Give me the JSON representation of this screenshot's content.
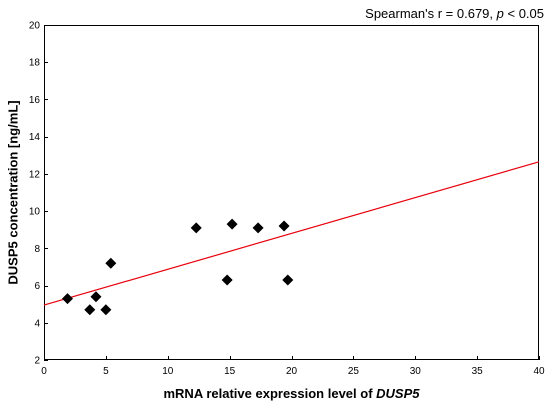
{
  "chart_data": {
    "type": "scatter",
    "annotation": {
      "prefix": "Spearman's r = 0.679, ",
      "p_symbol": "p",
      "suffix": " < 0.05"
    },
    "xlabel": {
      "prefix": "mRNA relative expression level of ",
      "gene": "DUSP5"
    },
    "ylabel": "DUSP5 concentration [ng/mL]",
    "xlim": [
      0,
      40
    ],
    "ylim": [
      2,
      20
    ],
    "x_ticks": [
      0,
      5,
      10,
      15,
      20,
      25,
      30,
      35,
      40
    ],
    "y_ticks": [
      2,
      4,
      6,
      8,
      10,
      12,
      14,
      16,
      18,
      20
    ],
    "grid": false,
    "marker": "diamond",
    "marker_color": "#000000",
    "points": [
      {
        "x": 1.9,
        "y": 5.3
      },
      {
        "x": 3.7,
        "y": 4.7
      },
      {
        "x": 4.2,
        "y": 5.4
      },
      {
        "x": 5.0,
        "y": 4.7
      },
      {
        "x": 5.4,
        "y": 7.2
      },
      {
        "x": 12.3,
        "y": 9.1
      },
      {
        "x": 14.8,
        "y": 6.3
      },
      {
        "x": 15.2,
        "y": 9.3
      },
      {
        "x": 17.3,
        "y": 9.1
      },
      {
        "x": 19.4,
        "y": 9.2
      },
      {
        "x": 19.7,
        "y": 6.3
      }
    ],
    "fit_line": {
      "color": "#e8000b",
      "x": [
        0,
        40
      ],
      "y": [
        4.95,
        12.65
      ]
    }
  }
}
